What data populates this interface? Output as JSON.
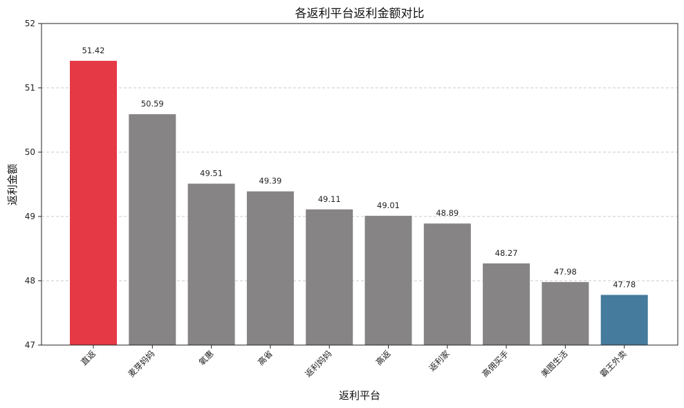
{
  "chart_data": {
    "type": "bar",
    "title": "各返利平台返利金额对比",
    "xlabel": "返利平台",
    "ylabel": "返利金额",
    "ylim": [
      47,
      52
    ],
    "yticks": [
      47,
      48,
      49,
      50,
      51,
      52
    ],
    "grid": true,
    "categories": [
      "直返",
      "麦芽妈妈",
      "氧惠",
      "高省",
      "返利妈妈",
      "高返",
      "返利家",
      "高佣买手",
      "美图生活",
      "霸王外卖"
    ],
    "values": [
      51.42,
      50.59,
      49.51,
      49.39,
      49.11,
      49.01,
      48.89,
      48.27,
      47.98,
      47.78
    ],
    "value_labels": [
      "51.42",
      "50.59",
      "49.51",
      "49.39",
      "49.11",
      "49.01",
      "48.89",
      "48.27",
      "47.98",
      "47.78"
    ],
    "colors": [
      "#e63946",
      "#868485",
      "#868485",
      "#868485",
      "#868485",
      "#868485",
      "#868485",
      "#868485",
      "#868485",
      "#457b9d"
    ]
  }
}
